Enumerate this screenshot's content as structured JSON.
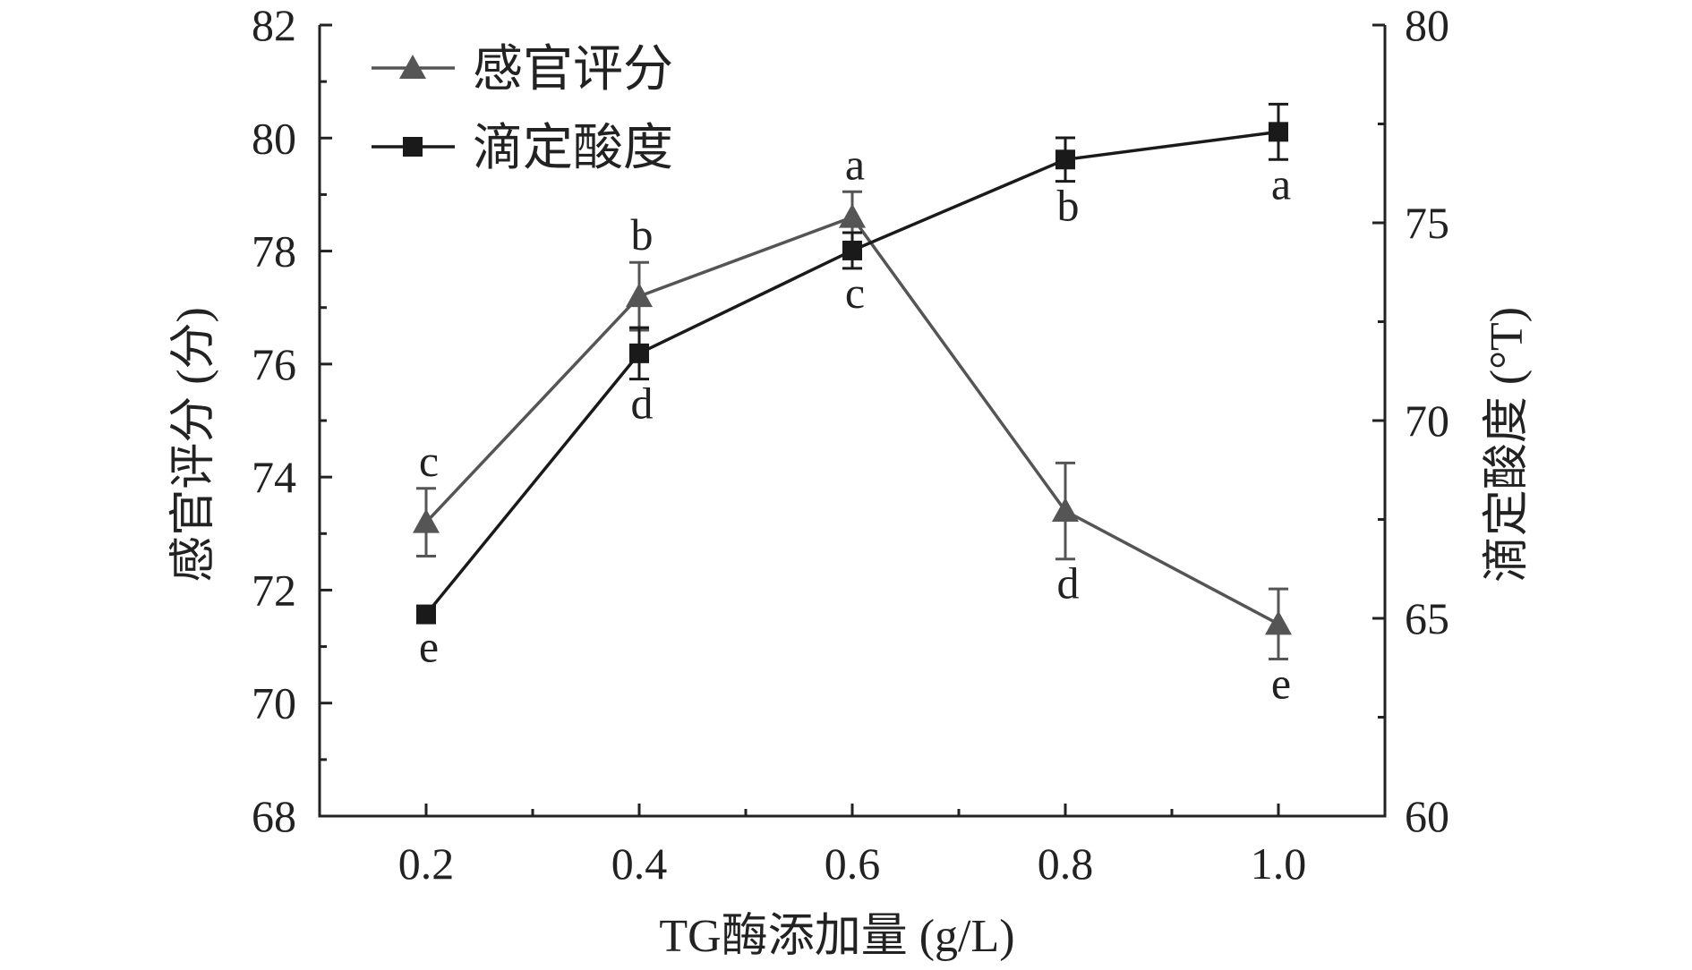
{
  "chart_data": {
    "type": "line",
    "title": "",
    "xlabel": "TG酶添加量 (g/L)",
    "ylabel": "感官评分 (分)",
    "y2label": "滴定酸度 (°T)",
    "x": [
      0.2,
      0.4,
      0.6,
      0.8,
      1.0
    ],
    "x_ticks": [
      "0.2",
      "0.4",
      "0.6",
      "0.8",
      "1.0"
    ],
    "xlim": [
      0.1,
      1.1
    ],
    "ylim": [
      68,
      82
    ],
    "y_ticks": [
      "68",
      "70",
      "72",
      "74",
      "76",
      "78",
      "80",
      "82"
    ],
    "y2lim": [
      60,
      80
    ],
    "y2_ticks": [
      "60",
      "65",
      "70",
      "75",
      "80"
    ],
    "legend_position": "top-left",
    "grid": false,
    "series": [
      {
        "name": "感官评分",
        "axis": "left",
        "marker": "triangle",
        "color": "#555555",
        "values": [
          73.2,
          77.2,
          78.6,
          73.4,
          71.4
        ],
        "error": [
          0.6,
          0.6,
          0.45,
          0.85,
          0.62
        ],
        "labels": [
          "c",
          "b",
          "a",
          "d",
          "e"
        ],
        "label_side": [
          "above",
          "above",
          "above",
          "below",
          "below"
        ]
      },
      {
        "name": "滴定酸度",
        "axis": "right",
        "marker": "square",
        "color": "#1a1a1a",
        "values": [
          65.1,
          71.7,
          74.3,
          76.6,
          77.3
        ],
        "error": [
          0.2,
          0.65,
          0.45,
          0.55,
          0.7
        ],
        "labels": [
          "e",
          "d",
          "c",
          "b",
          "a"
        ],
        "label_side": [
          "below",
          "below",
          "below",
          "below",
          "below"
        ]
      }
    ]
  }
}
